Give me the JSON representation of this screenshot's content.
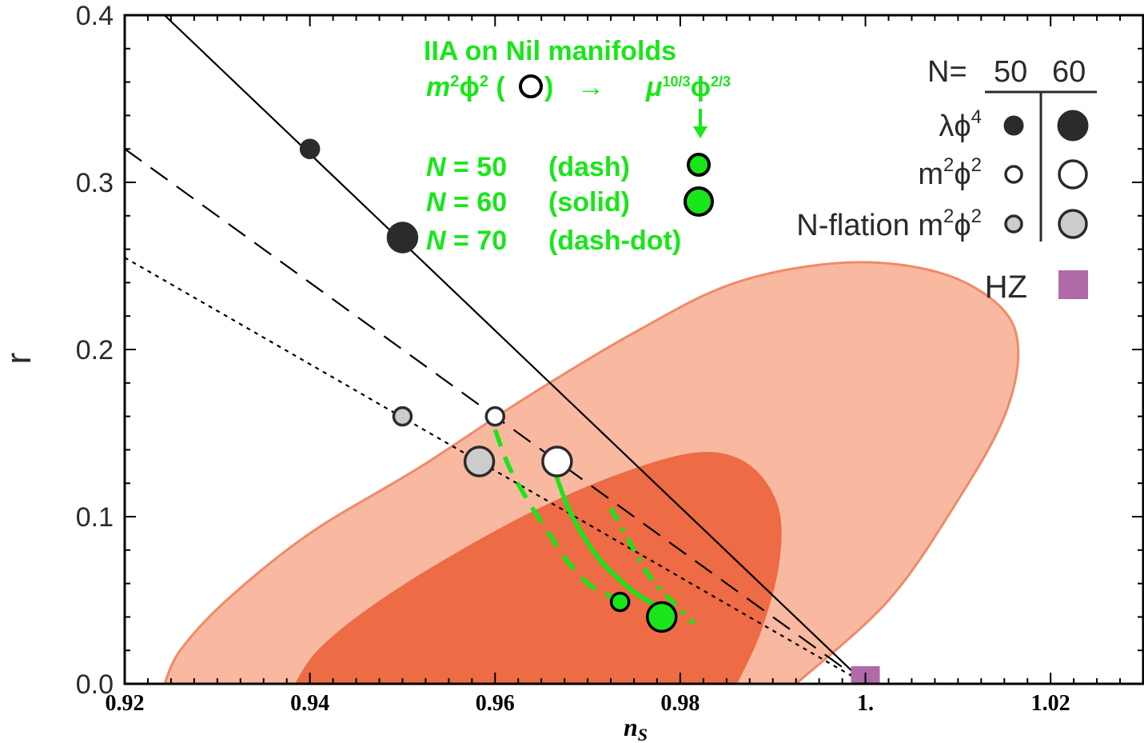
{
  "chart_data": {
    "type": "scatter",
    "xlabel": "n",
    "xlabel_sub": "S",
    "ylabel": "r",
    "xlim": [
      0.92,
      1.03
    ],
    "ylim": [
      0.0,
      0.4
    ],
    "x_ticks": [
      {
        "value": 0.92,
        "label": "0.92"
      },
      {
        "value": 0.94,
        "label": "0.94"
      },
      {
        "value": 0.96,
        "label": "0.96"
      },
      {
        "value": 0.98,
        "label": "0.98"
      },
      {
        "value": 1.0,
        "label": "1."
      },
      {
        "value": 1.02,
        "label": "1.02"
      }
    ],
    "y_ticks": [
      {
        "value": 0.0,
        "label": "0.0"
      },
      {
        "value": 0.1,
        "label": "0.1"
      },
      {
        "value": 0.2,
        "label": "0.2"
      },
      {
        "value": 0.3,
        "label": "0.3"
      },
      {
        "value": 0.4,
        "label": "0.4"
      }
    ],
    "contours": [
      {
        "name": "outer",
        "fill": "#f8b9a0",
        "stroke": "#f08a68",
        "points": [
          [
            0.9243,
            0
          ],
          [
            0.926,
            0.02
          ],
          [
            0.931,
            0.05
          ],
          [
            0.94,
            0.09
          ],
          [
            0.952,
            0.13
          ],
          [
            0.963,
            0.17
          ],
          [
            0.975,
            0.21
          ],
          [
            0.986,
            0.24
          ],
          [
            0.998,
            0.252
          ],
          [
            1.008,
            0.246
          ],
          [
            1.0145,
            0.226
          ],
          [
            1.0165,
            0.2
          ],
          [
            1.015,
            0.16
          ],
          [
            1.01,
            0.11
          ],
          [
            1.0025,
            0.05
          ],
          [
            0.9925,
            0
          ]
        ]
      },
      {
        "name": "inner",
        "fill": "#ed6b45",
        "stroke": "#ed6b45",
        "points": [
          [
            0.9385,
            0
          ],
          [
            0.941,
            0.02
          ],
          [
            0.9465,
            0.045
          ],
          [
            0.955,
            0.075
          ],
          [
            0.965,
            0.105
          ],
          [
            0.975,
            0.128
          ],
          [
            0.9825,
            0.138
          ],
          [
            0.9875,
            0.13
          ],
          [
            0.9905,
            0.105
          ],
          [
            0.9905,
            0.07
          ],
          [
            0.9885,
            0.03
          ],
          [
            0.986,
            0
          ]
        ]
      }
    ],
    "lines": [
      {
        "name": "",
        "style": "solid",
        "color": "#000000",
        "points": [
          [
            0.9243,
            0.4
          ],
          [
            1.0,
            0.0
          ]
        ]
      },
      {
        "name": "",
        "style": "dashed",
        "color": "#000000",
        "points": [
          [
            0.92,
            0.32
          ],
          [
            1.0,
            0.0
          ]
        ]
      },
      {
        "name": "",
        "style": "dotted",
        "color": "#000000",
        "points": [
          [
            0.92,
            0.255
          ],
          [
            1.0,
            0.0
          ]
        ]
      }
    ],
    "green_curves": [
      {
        "name": "N = 50 (dash)",
        "style": "dash",
        "points": [
          [
            0.96,
            0.152
          ],
          [
            0.9615,
            0.13
          ],
          [
            0.9635,
            0.11
          ],
          [
            0.9658,
            0.09
          ],
          [
            0.968,
            0.072
          ],
          [
            0.9705,
            0.058
          ],
          [
            0.9735,
            0.05
          ]
        ]
      },
      {
        "name": "N = 60 (solid)",
        "style": "solid",
        "points": [
          [
            0.9665,
            0.126
          ],
          [
            0.968,
            0.104
          ],
          [
            0.9698,
            0.086
          ],
          [
            0.9715,
            0.073
          ],
          [
            0.9735,
            0.062
          ],
          [
            0.9755,
            0.053
          ],
          [
            0.978,
            0.045
          ]
        ]
      },
      {
        "name": "N = 70 (dash-dot)",
        "style": "dashdot",
        "points": [
          [
            0.9725,
            0.105
          ],
          [
            0.974,
            0.09
          ],
          [
            0.9755,
            0.075
          ],
          [
            0.977,
            0.062
          ],
          [
            0.979,
            0.05
          ],
          [
            0.9815,
            0.036
          ]
        ]
      }
    ],
    "markers": [
      {
        "label": "λφ⁴ N=50",
        "x": 0.94,
        "y": 0.32,
        "fill": "#2b2b2b",
        "stroke": "#2b2b2b",
        "size": "small"
      },
      {
        "label": "λφ⁴ N=60",
        "x": 0.95,
        "y": 0.267,
        "fill": "#2b2b2b",
        "stroke": "#2b2b2b",
        "size": "large"
      },
      {
        "label": "m²φ² N=50",
        "x": 0.96,
        "y": 0.16,
        "fill": "#ffffff",
        "stroke": "#2b2b2b",
        "size": "small"
      },
      {
        "label": "m²φ² N=60",
        "x": 0.9667,
        "y": 0.133,
        "fill": "#ffffff",
        "stroke": "#2b2b2b",
        "size": "large"
      },
      {
        "label": "N-flation m²φ² N=50",
        "x": 0.95,
        "y": 0.16,
        "fill": "#cccccc",
        "stroke": "#2b2b2b",
        "size": "small"
      },
      {
        "label": "N-flation m²φ² N=60",
        "x": 0.9583,
        "y": 0.133,
        "fill": "#cccccc",
        "stroke": "#2b2b2b",
        "size": "large"
      },
      {
        "label": "μ¹⁰ᐟ³φ²ᐟ³ N=50",
        "x": 0.9735,
        "y": 0.049,
        "fill": "#19e619",
        "stroke": "#000000",
        "size": "small"
      },
      {
        "label": "μ¹⁰ᐟ³φ²ᐟ³ N=60",
        "x": 0.978,
        "y": 0.04,
        "fill": "#19e619",
        "stroke": "#000000",
        "size": "large"
      }
    ],
    "hz_marker": {
      "label": "HZ",
      "x": 1.0,
      "y": 0.0,
      "color": "#b06aa8"
    }
  },
  "annotation": {
    "title": "IIA on Nil manifolds",
    "m2phi2": "m²ϕ² (",
    "m2phi2_close": ")",
    "arrow": "→",
    "mu": "μ",
    "mu_sup": "10/3",
    "phi": "ϕ",
    "phi_sup": "2/3",
    "down_arrow": "↓",
    "rows": [
      {
        "n": "N",
        "eq": " = 50",
        "desc": "(dash)"
      },
      {
        "n": "N",
        "eq": " = 60",
        "desc": "(solid)"
      },
      {
        "n": "N",
        "eq": " = 70",
        "desc": "(dash-dot)"
      }
    ]
  },
  "legend": {
    "header_n": "N=",
    "col_50": "50",
    "col_60": "60",
    "row1": "λϕ",
    "row1_sup": "4",
    "row2": "m",
    "row2_sup1": "2",
    "row2_mid": "ϕ",
    "row2_sup2": "2",
    "row3": "N-flation m",
    "row3_sup1": "2",
    "row3_mid": "ϕ",
    "row3_sup2": "2",
    "hz": "HZ"
  }
}
